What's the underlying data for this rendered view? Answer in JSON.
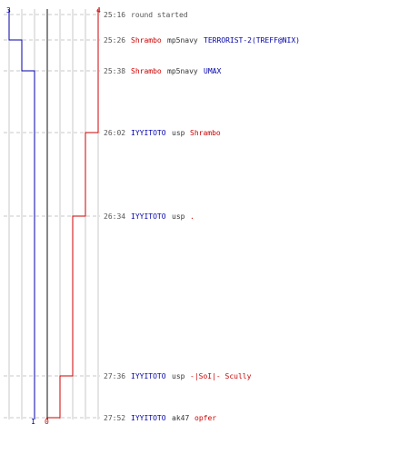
{
  "chart_data": {
    "type": "line",
    "title": "",
    "xlabel": "",
    "ylabel": "",
    "colors": {
      "team_blue": "#0000aa",
      "team_red": "#cc0000",
      "time_text": "#555555",
      "neutral_text": "#333333",
      "grid": "#c8c8c8",
      "center_line": "#888888"
    },
    "axis_max": 4,
    "top_labels": {
      "left": "3",
      "right": "4"
    },
    "bottom_labels": {
      "left": "1",
      "right": "0"
    },
    "series": [
      {
        "name": "",
        "team": "blue",
        "values": [
          3,
          3,
          2,
          1,
          1,
          1,
          1,
          1
        ]
      },
      {
        "name": "",
        "team": "red",
        "values": [
          4,
          4,
          4,
          4,
          3,
          2,
          1,
          0
        ]
      }
    ],
    "events": [
      {
        "time": "25:16",
        "note": "round started",
        "parts": []
      },
      {
        "time": "25:26",
        "note": "",
        "parts": [
          {
            "text": "Shrambo",
            "team": "red"
          },
          {
            "text": "mp5navy",
            "team": "neutral"
          },
          {
            "text": "TERRORIST-2(TREFF@NIX)",
            "team": "blue"
          }
        ]
      },
      {
        "time": "25:38",
        "note": "",
        "parts": [
          {
            "text": "Shrambo",
            "team": "red"
          },
          {
            "text": "mp5navy",
            "team": "neutral"
          },
          {
            "text": "UMAX",
            "team": "blue"
          }
        ]
      },
      {
        "time": "26:02",
        "note": "",
        "parts": [
          {
            "text": "IYYITOTO",
            "team": "blue"
          },
          {
            "text": "usp",
            "team": "neutral"
          },
          {
            "text": "Shrambo",
            "team": "red"
          }
        ]
      },
      {
        "time": "26:34",
        "note": "",
        "parts": [
          {
            "text": "IYYITOTO",
            "team": "blue"
          },
          {
            "text": "usp",
            "team": "neutral"
          },
          {
            "text": ".",
            "team": "red"
          }
        ]
      },
      {
        "time": "27:36",
        "note": "",
        "parts": [
          {
            "text": "IYYITOTO",
            "team": "blue"
          },
          {
            "text": "usp",
            "team": "neutral"
          },
          {
            "text": "-|SoI|- Scully",
            "team": "red"
          }
        ]
      },
      {
        "time": "27:52",
        "note": "",
        "parts": [
          {
            "text": "IYYITOTO",
            "team": "blue"
          },
          {
            "text": "ak47",
            "team": "neutral"
          },
          {
            "text": "opfer",
            "team": "red"
          }
        ]
      }
    ]
  }
}
